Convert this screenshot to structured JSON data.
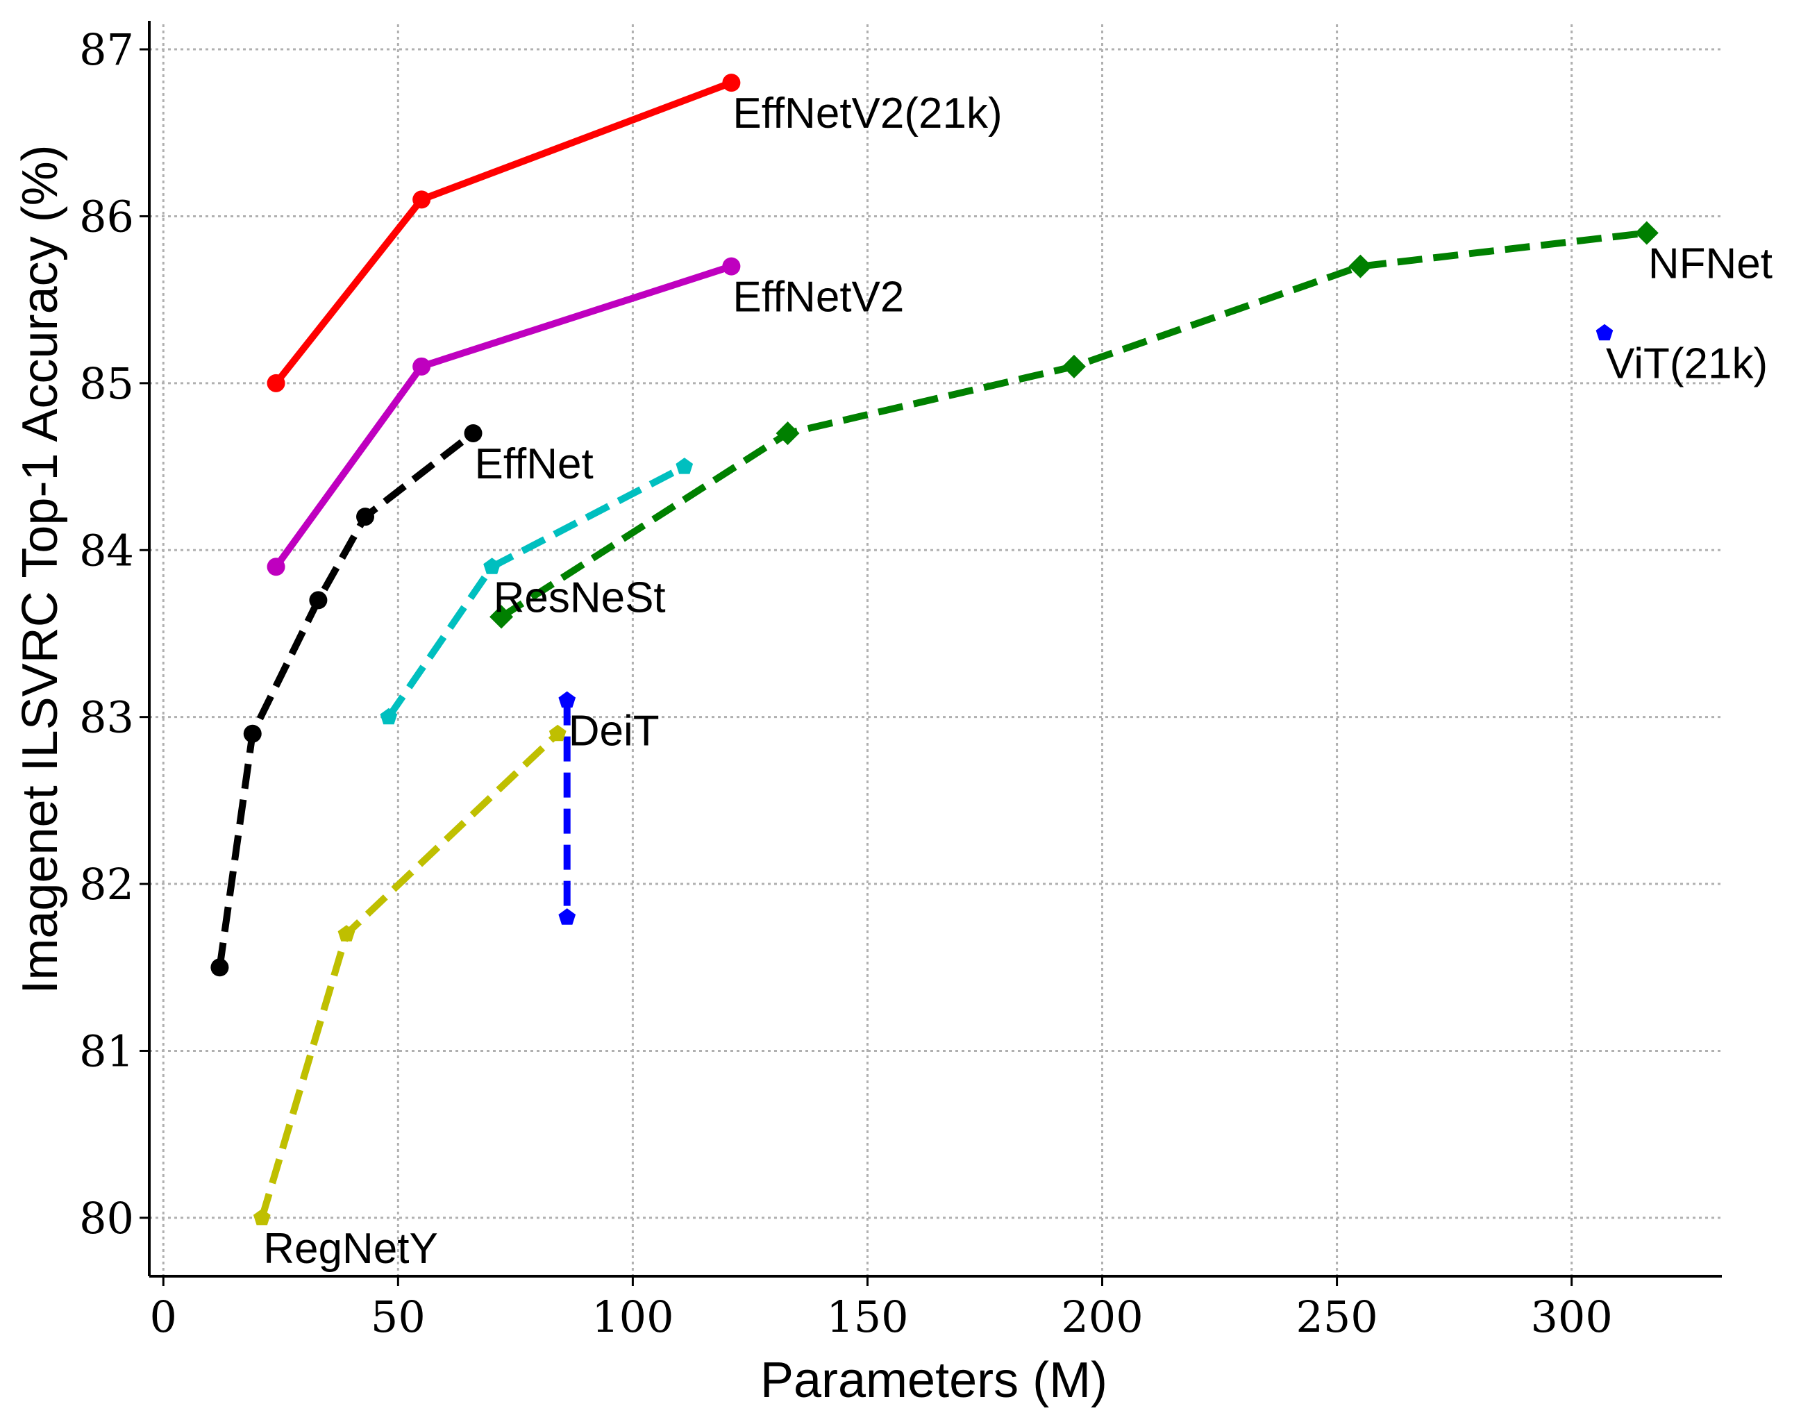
{
  "chart_data": {
    "type": "line",
    "title": "",
    "xlabel": "Parameters (M)",
    "ylabel": "Imagenet ILSVRC Top-1 Accuracy (%)",
    "xlim": [
      -3,
      332
    ],
    "ylim": [
      79.65,
      87.15
    ],
    "xticks": [
      0,
      50,
      100,
      150,
      200,
      250,
      300
    ],
    "yticks": [
      80,
      81,
      82,
      83,
      84,
      85,
      86,
      87
    ],
    "grid": true,
    "series": [
      {
        "name": "EffNetV2(21k)",
        "color": "#ff0000",
        "line_style": "solid",
        "marker": "circle",
        "x": [
          24,
          55,
          121
        ],
        "y": [
          85.0,
          86.1,
          86.8
        ]
      },
      {
        "name": "EffNetV2",
        "color": "#bf00bf",
        "line_style": "solid",
        "marker": "circle",
        "x": [
          24,
          55,
          121
        ],
        "y": [
          83.9,
          85.1,
          85.7
        ]
      },
      {
        "name": "EffNet",
        "color": "#000000",
        "line_style": "dashed",
        "marker": "circle",
        "x": [
          12,
          19,
          33,
          43,
          66
        ],
        "y": [
          81.5,
          82.9,
          83.7,
          84.2,
          84.7
        ]
      },
      {
        "name": "ResNeSt",
        "color": "#00bfbf",
        "line_style": "dashed",
        "marker": "pentagon",
        "x": [
          48,
          70,
          111
        ],
        "y": [
          83.0,
          83.9,
          84.5
        ]
      },
      {
        "name": "NFNet",
        "color": "#008000",
        "line_style": "dashed",
        "marker": "diamond",
        "x": [
          72,
          133,
          194,
          255,
          316
        ],
        "y": [
          83.6,
          84.7,
          85.1,
          85.7,
          85.9
        ]
      },
      {
        "name": "DeiT",
        "color": "#0000ff",
        "line_style": "dashed",
        "marker": "pentagon",
        "x": [
          86,
          86
        ],
        "y": [
          83.1,
          81.8
        ]
      },
      {
        "name": "RegNetY",
        "color": "#bfbf00",
        "line_style": "dashed",
        "marker": "pentagon",
        "x": [
          21,
          39,
          84
        ],
        "y": [
          80.0,
          81.7,
          82.9
        ]
      },
      {
        "name": "ViT(21k)",
        "color": "#0000ff",
        "line_style": "none",
        "marker": "pentagon",
        "x": [
          307
        ],
        "y": [
          85.3
        ]
      }
    ],
    "annotations": [
      {
        "text": "EffNetV2(21k)",
        "x": 121,
        "y": 86.8
      },
      {
        "text": "EffNetV2",
        "x": 121,
        "y": 85.7
      },
      {
        "text": "EffNet",
        "x": 66,
        "y": 84.7
      },
      {
        "text": "ResNeSt",
        "x": 70,
        "y": 83.9
      },
      {
        "text": "NFNet",
        "x": 316,
        "y": 85.9
      },
      {
        "text": "ViT(21k)",
        "x": 307,
        "y": 85.3
      },
      {
        "text": "DeiT",
        "x": 86,
        "y": 83.1
      },
      {
        "text": "RegNetY",
        "x": 21,
        "y": 80.0
      }
    ]
  }
}
